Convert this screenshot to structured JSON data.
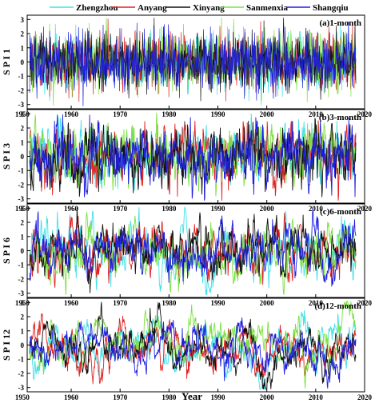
{
  "legend": [
    {
      "name": "Zhengzhou",
      "color": "#40e0e8"
    },
    {
      "name": "Anyang",
      "color": "#e02020"
    },
    {
      "name": "Xinyang",
      "color": "#111111"
    },
    {
      "name": "Sanmenxia",
      "color": "#7ce040"
    },
    {
      "name": "Shangqiu",
      "color": "#2020e0"
    }
  ],
  "xlabel": "Year",
  "chart_data": [
    {
      "type": "line",
      "panel_label": "(a)1-month",
      "ylabel": "S P I 1",
      "xlim": [
        1951,
        2020
      ],
      "ylim": [
        -3.3,
        3.3
      ],
      "xticks": [
        1950,
        1960,
        1970,
        1980,
        1990,
        2000,
        2010,
        2020
      ],
      "yticks": [
        -3,
        -2,
        -1,
        0,
        1,
        2,
        3
      ],
      "x_range": [
        1951.5,
        2018.2
      ],
      "series": [
        {
          "name": "Zhengzhou",
          "color": "#40e0e8"
        },
        {
          "name": "Anyang",
          "color": "#e02020"
        },
        {
          "name": "Xinyang",
          "color": "#111111"
        },
        {
          "name": "Sanmenxia",
          "color": "#7ce040"
        },
        {
          "name": "Shangqiu",
          "color": "#2020e0"
        }
      ]
    },
    {
      "type": "line",
      "panel_label": "(b)3-month",
      "ylabel": "S P I 3",
      "xlim": [
        1951,
        2020
      ],
      "ylim": [
        -3.3,
        3.3
      ],
      "xticks": [
        1950,
        1960,
        1970,
        1980,
        1990,
        2000,
        2010,
        2020
      ],
      "yticks": [
        -3,
        -2,
        -1,
        0,
        1,
        2,
        3
      ],
      "x_range": [
        1951.5,
        2018.2
      ],
      "series": [
        {
          "name": "Zhengzhou",
          "color": "#40e0e8"
        },
        {
          "name": "Anyang",
          "color": "#e02020"
        },
        {
          "name": "Xinyang",
          "color": "#111111"
        },
        {
          "name": "Sanmenxia",
          "color": "#7ce040"
        },
        {
          "name": "Shangqiu",
          "color": "#2020e0"
        }
      ]
    },
    {
      "type": "line",
      "panel_label": "(c)6-month",
      "ylabel": "S P I 6",
      "xlim": [
        1951,
        2020
      ],
      "ylim": [
        -3.3,
        3.3
      ],
      "xticks": [
        1950,
        1960,
        1970,
        1980,
        1990,
        2000,
        2010,
        2020
      ],
      "yticks": [
        -3,
        -2,
        -1,
        0,
        1,
        2,
        3
      ],
      "x_range": [
        1951.5,
        2018.2
      ],
      "series": [
        {
          "name": "Zhengzhou",
          "color": "#40e0e8"
        },
        {
          "name": "Anyang",
          "color": "#e02020"
        },
        {
          "name": "Xinyang",
          "color": "#111111"
        },
        {
          "name": "Sanmenxia",
          "color": "#7ce040"
        },
        {
          "name": "Shangqiu",
          "color": "#2020e0"
        }
      ]
    },
    {
      "type": "line",
      "panel_label": "(d)12-month",
      "ylabel": "S P I 12",
      "xlim": [
        1951,
        2020
      ],
      "ylim": [
        -3.3,
        3.3
      ],
      "xticks": [
        1950,
        1960,
        1970,
        1980,
        1990,
        2000,
        2010,
        2020
      ],
      "yticks": [
        -3,
        -2,
        -1,
        0,
        1,
        2,
        3
      ],
      "x_range": [
        1951.5,
        2018.2
      ],
      "series": [
        {
          "name": "Zhengzhou",
          "color": "#40e0e8"
        },
        {
          "name": "Anyang",
          "color": "#e02020"
        },
        {
          "name": "Xinyang",
          "color": "#111111"
        },
        {
          "name": "Sanmenxia",
          "color": "#7ce040"
        },
        {
          "name": "Shangqiu",
          "color": "#2020e0"
        }
      ]
    }
  ]
}
